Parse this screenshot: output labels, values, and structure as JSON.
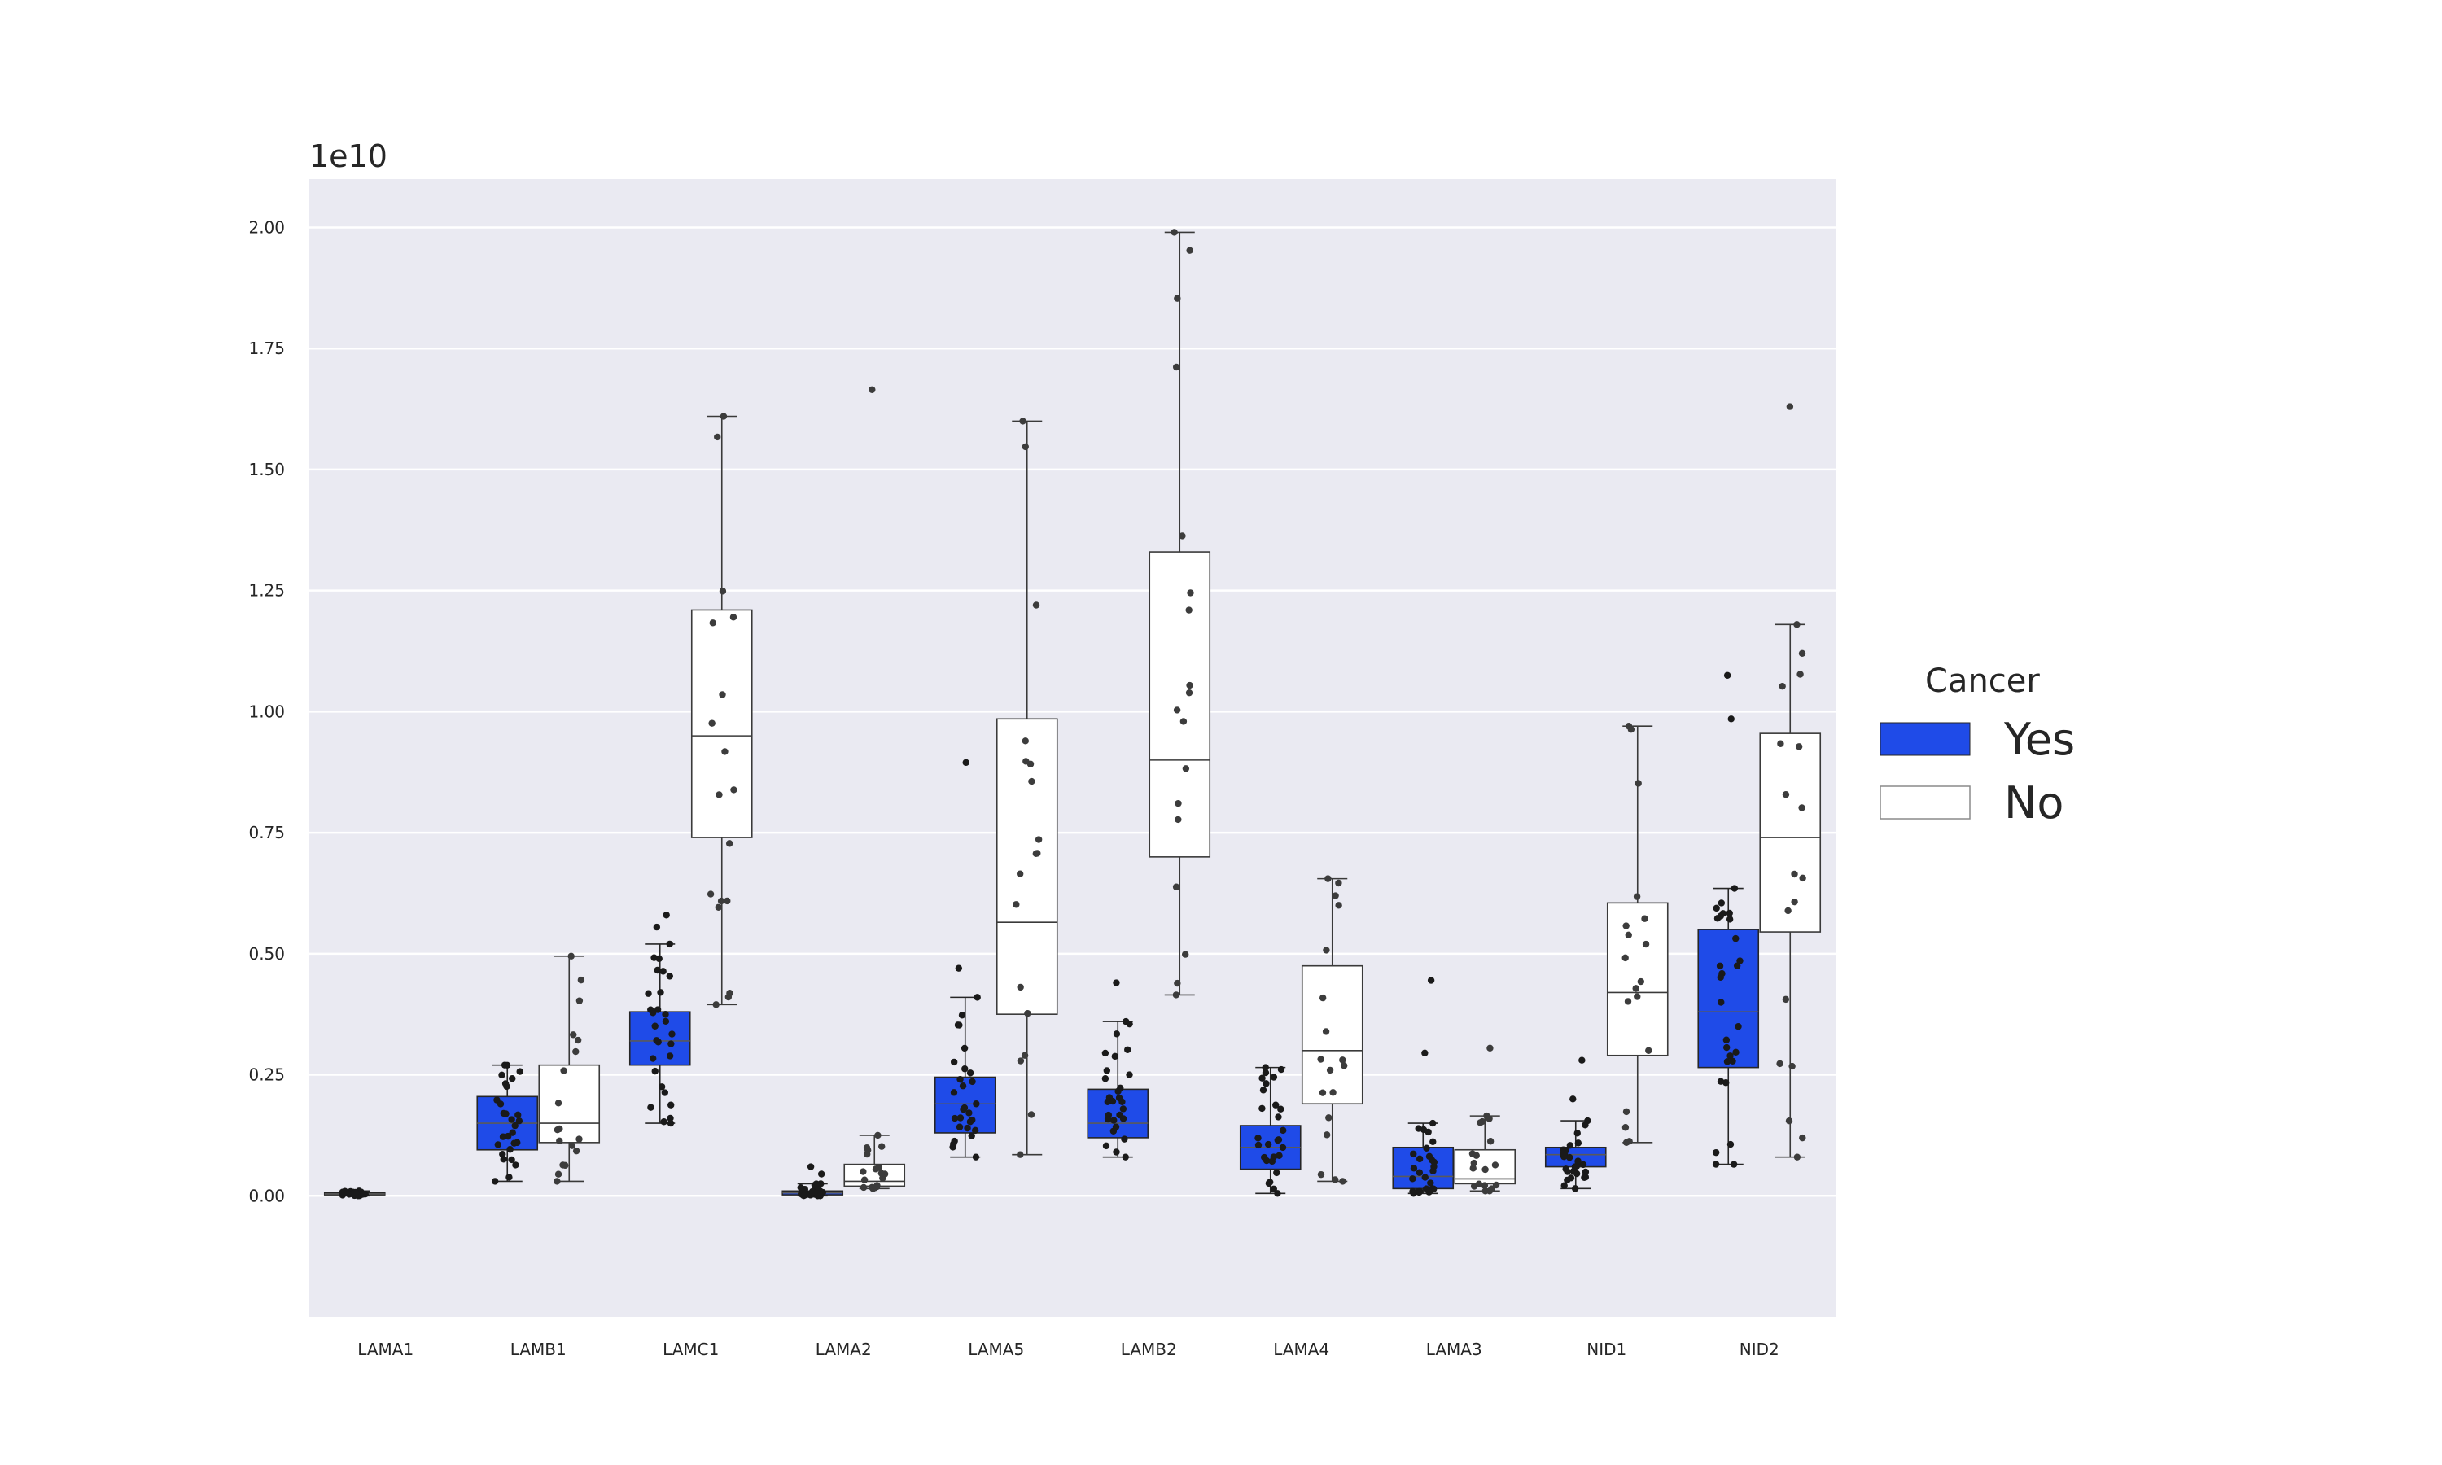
{
  "chart_data": {
    "type": "box",
    "offset_label": "1e10",
    "categories": [
      "LAMA1",
      "LAMB1",
      "LAMC1",
      "LAMA2",
      "LAMA5",
      "LAMB2",
      "LAMA4",
      "LAMA3",
      "NID1",
      "NID2"
    ],
    "ylim": [
      -0.25,
      2.1
    ],
    "yticks": [
      0.0,
      0.25,
      0.5,
      0.75,
      1.0,
      1.25,
      1.5,
      1.75,
      2.0
    ],
    "ytick_labels": [
      "0.00",
      "0.25",
      "0.50",
      "0.75",
      "1.00",
      "1.25",
      "1.50",
      "1.75",
      "2.00"
    ],
    "grid": true,
    "legend": {
      "title": "Cancer",
      "placement": "right",
      "entries": [
        {
          "label": "Yes",
          "color": "#1f4be8"
        },
        {
          "label": "No",
          "color": "#ffffff"
        }
      ]
    },
    "series": [
      {
        "name": "Yes",
        "color": "#1f4be8",
        "boxes": [
          {
            "category": "LAMA1",
            "whislo": 0.0,
            "q1": 0.002,
            "median": 0.004,
            "q3": 0.006,
            "whishi": 0.01,
            "fliers": []
          },
          {
            "category": "LAMB1",
            "whislo": 0.03,
            "q1": 0.095,
            "median": 0.15,
            "q3": 0.205,
            "whishi": 0.27,
            "fliers": []
          },
          {
            "category": "LAMC1",
            "whislo": 0.15,
            "q1": 0.27,
            "median": 0.32,
            "q3": 0.38,
            "whishi": 0.52,
            "fliers": [
              0.555,
              0.58
            ]
          },
          {
            "category": "LAMA2",
            "whislo": 0.0,
            "q1": 0.002,
            "median": 0.006,
            "q3": 0.01,
            "whishi": 0.025,
            "fliers": [
              0.045,
              0.06
            ]
          },
          {
            "category": "LAMA5",
            "whislo": 0.08,
            "q1": 0.13,
            "median": 0.19,
            "q3": 0.245,
            "whishi": 0.41,
            "fliers": [
              0.47,
              0.895
            ]
          },
          {
            "category": "LAMB2",
            "whislo": 0.08,
            "q1": 0.12,
            "median": 0.15,
            "q3": 0.22,
            "whishi": 0.36,
            "fliers": [
              0.44
            ]
          },
          {
            "category": "LAMA4",
            "whislo": 0.005,
            "q1": 0.055,
            "median": 0.1,
            "q3": 0.145,
            "whishi": 0.265,
            "fliers": []
          },
          {
            "category": "LAMA3",
            "whislo": 0.005,
            "q1": 0.015,
            "median": 0.04,
            "q3": 0.1,
            "whishi": 0.15,
            "fliers": [
              0.295,
              0.445
            ]
          },
          {
            "category": "NID1",
            "whislo": 0.015,
            "q1": 0.06,
            "median": 0.085,
            "q3": 0.1,
            "whishi": 0.155,
            "fliers": [
              0.2,
              0.28
            ]
          },
          {
            "category": "NID2",
            "whislo": 0.065,
            "q1": 0.265,
            "median": 0.38,
            "q3": 0.55,
            "whishi": 0.635,
            "fliers": [
              0.985,
              1.075
            ]
          }
        ]
      },
      {
        "name": "No",
        "color": "#ffffff",
        "boxes": [
          {
            "category": "LAMA1",
            "whislo": null,
            "q1": null,
            "median": null,
            "q3": null,
            "whishi": null,
            "fliers": []
          },
          {
            "category": "LAMB1",
            "whislo": 0.03,
            "q1": 0.11,
            "median": 0.15,
            "q3": 0.27,
            "whishi": 0.495,
            "fliers": []
          },
          {
            "category": "LAMC1",
            "whislo": 0.395,
            "q1": 0.74,
            "median": 0.95,
            "q3": 1.21,
            "whishi": 1.61,
            "fliers": []
          },
          {
            "category": "LAMA2",
            "whislo": 0.015,
            "q1": 0.02,
            "median": 0.03,
            "q3": 0.065,
            "whishi": 0.125,
            "fliers": [
              1.665
            ]
          },
          {
            "category": "LAMA5",
            "whislo": 0.085,
            "q1": 0.375,
            "median": 0.565,
            "q3": 0.985,
            "whishi": 1.6,
            "fliers": []
          },
          {
            "category": "LAMB2",
            "whislo": 0.415,
            "q1": 0.7,
            "median": 0.9,
            "q3": 1.33,
            "whishi": 1.99,
            "fliers": []
          },
          {
            "category": "LAMA4",
            "whislo": 0.03,
            "q1": 0.19,
            "median": 0.3,
            "q3": 0.475,
            "whishi": 0.655,
            "fliers": []
          },
          {
            "category": "LAMA3",
            "whislo": 0.01,
            "q1": 0.025,
            "median": 0.035,
            "q3": 0.095,
            "whishi": 0.165,
            "fliers": [
              0.305
            ]
          },
          {
            "category": "NID1",
            "whislo": 0.11,
            "q1": 0.29,
            "median": 0.42,
            "q3": 0.605,
            "whishi": 0.97,
            "fliers": []
          },
          {
            "category": "NID2",
            "whislo": 0.08,
            "q1": 0.545,
            "median": 0.74,
            "q3": 0.955,
            "whishi": 1.18,
            "fliers": [
              1.63
            ]
          }
        ]
      }
    ]
  }
}
